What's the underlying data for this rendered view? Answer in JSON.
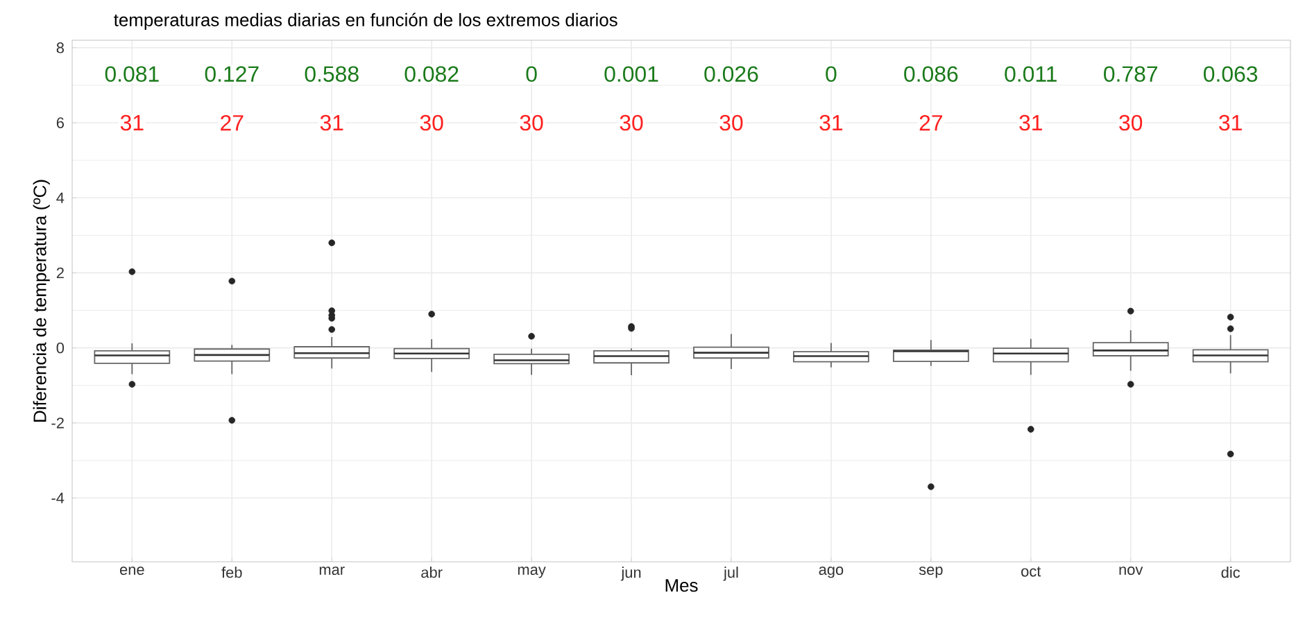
{
  "chart_data": {
    "type": "box",
    "title": "temperaturas medias diarias en función de los extremos diarios",
    "xlabel": "Mes",
    "ylabel": "Diferencia de temperatura (ºC)",
    "categories": [
      "ene",
      "feb",
      "mar",
      "abr",
      "may",
      "jun",
      "jul",
      "ago",
      "sep",
      "oct",
      "nov",
      "dic"
    ],
    "boxes": [
      {
        "low": -0.7,
        "q1": -0.41,
        "median": -0.2,
        "q3": -0.08,
        "high": 0.12,
        "outliers": [
          2.03,
          -0.97
        ]
      },
      {
        "low": -0.7,
        "q1": -0.35,
        "median": -0.19,
        "q3": -0.03,
        "high": 0.08,
        "outliers": [
          1.78,
          -1.93
        ]
      },
      {
        "low": -0.55,
        "q1": -0.27,
        "median": -0.14,
        "q3": 0.03,
        "high": 0.29,
        "outliers": [
          2.8,
          0.99,
          0.87,
          0.79,
          0.49
        ]
      },
      {
        "low": -0.64,
        "q1": -0.28,
        "median": -0.15,
        "q3": -0.02,
        "high": 0.23,
        "outliers": [
          0.9
        ]
      },
      {
        "low": -0.72,
        "q1": -0.42,
        "median": -0.33,
        "q3": -0.17,
        "high": -0.02,
        "outliers": [
          0.31
        ]
      },
      {
        "low": -0.73,
        "q1": -0.4,
        "median": -0.22,
        "q3": -0.08,
        "high": -0.01,
        "outliers": [
          0.57,
          0.52
        ]
      },
      {
        "low": -0.56,
        "q1": -0.27,
        "median": -0.13,
        "q3": 0.02,
        "high": 0.37
      },
      {
        "low": -0.52,
        "q1": -0.37,
        "median": -0.22,
        "q3": -0.1,
        "high": 0.13
      },
      {
        "low": -0.48,
        "q1": -0.36,
        "median": -0.09,
        "q3": -0.06,
        "high": 0.21,
        "outliers": [
          -3.7
        ]
      },
      {
        "low": -0.72,
        "q1": -0.37,
        "median": -0.15,
        "q3": -0.01,
        "high": 0.24,
        "outliers": [
          -2.17
        ]
      },
      {
        "low": -0.61,
        "q1": -0.21,
        "median": -0.07,
        "q3": 0.14,
        "high": 0.47,
        "outliers": [
          0.98,
          -0.97
        ]
      },
      {
        "low": -0.68,
        "q1": -0.37,
        "median": -0.2,
        "q3": -0.05,
        "high": 0.34,
        "outliers": [
          0.82,
          0.51,
          -2.83
        ]
      }
    ],
    "ylim": [
      -5.7,
      8.2
    ],
    "yticks": [
      -4,
      -2,
      0,
      2,
      4,
      6,
      8
    ],
    "grid": true,
    "annotations": [
      "0.081",
      "0.127",
      "0.588",
      "0.082",
      "0",
      "0.001",
      "0.026",
      "0",
      "0.086",
      "0.011",
      "0.787",
      "0.063",
      "31",
      "27",
      "31",
      "30",
      "30",
      "30",
      "30",
      "31",
      "27",
      "31",
      "30",
      "31"
    ]
  }
}
